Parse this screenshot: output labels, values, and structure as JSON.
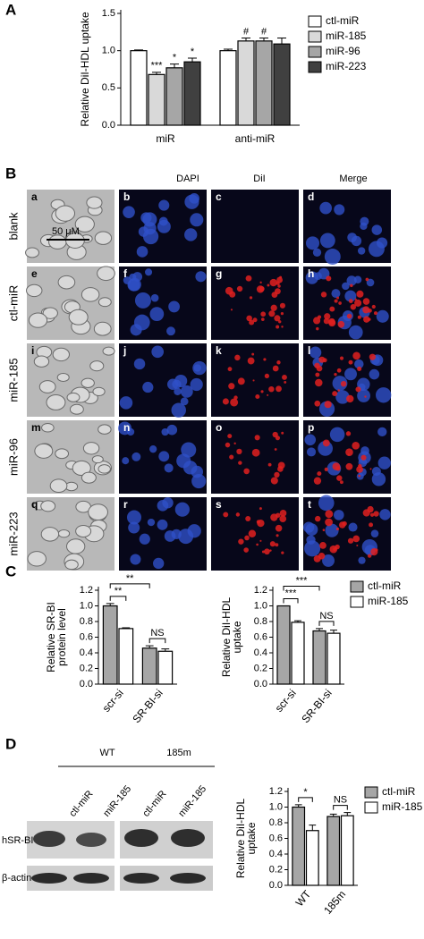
{
  "panel_labels": [
    "A",
    "B",
    "C",
    "D"
  ],
  "chart_data": [
    {
      "type": "bar",
      "ylabel": [
        "Relative DiI-HDL uptake"
      ],
      "categories": [
        "miR",
        "anti-miR"
      ],
      "ylim": [
        0,
        1.5
      ],
      "yticks": [
        {
          "value": 0,
          "label": "0.0"
        },
        0.5,
        {
          "value": 1,
          "label": "1.0"
        },
        1.5
      ],
      "legend": true,
      "series": [
        {
          "name": "ctl-miR",
          "color": "#ffffff",
          "values": [
            1.0,
            1.0
          ],
          "errors": [
            0.01,
            0.02
          ],
          "markers": [
            null,
            null
          ]
        },
        {
          "name": "miR-185",
          "color": "#d9d9d9",
          "values": [
            0.68,
            1.13
          ],
          "errors": [
            0.03,
            0.04
          ],
          "markers": [
            "***",
            "#"
          ]
        },
        {
          "name": "miR-96",
          "color": "#a6a6a6",
          "values": [
            0.77,
            1.13
          ],
          "errors": [
            0.05,
            0.04
          ],
          "markers": [
            "*",
            "#"
          ]
        },
        {
          "name": "miR-223",
          "color": "#404040",
          "values": [
            0.85,
            1.09
          ],
          "errors": [
            0.05,
            0.08
          ],
          "markers": [
            "*",
            null
          ]
        }
      ]
    },
    {
      "type": "bar",
      "ylabel": [
        "Relative SR-BI",
        "protein level"
      ],
      "categories": [
        "scr-si",
        "SR-BI-si"
      ],
      "ylim": [
        0,
        1.2
      ],
      "yticks": [
        {
          "value": 0,
          "label": "0.0"
        },
        0.2,
        0.4,
        0.6,
        0.8,
        {
          "value": 1,
          "label": "1.0"
        },
        1.2
      ],
      "legend": false,
      "annotations": [
        "**",
        "**",
        "NS"
      ],
      "series": [
        {
          "color": "#a6a6a6",
          "values": [
            1.0,
            0.46
          ],
          "errors": [
            0.03,
            0.03
          ]
        },
        {
          "color": "#ffffff",
          "values": [
            0.71,
            0.42
          ],
          "errors": [
            0.01,
            0.03
          ]
        }
      ]
    },
    {
      "type": "bar",
      "ylabel": [
        "Relative DiI-HDL",
        "uptake"
      ],
      "categories": [
        "scr-si",
        "SR-BI-si"
      ],
      "ylim": [
        0,
        1.2
      ],
      "yticks": [
        {
          "value": 0,
          "label": "0.0"
        },
        0.2,
        0.4,
        0.6,
        0.8,
        {
          "value": 1,
          "label": "1.0"
        },
        1.2
      ],
      "legend": true,
      "annotations": [
        "***",
        "***",
        "NS"
      ],
      "series": [
        {
          "name": "ctl-miR",
          "color": "#a6a6a6",
          "values": [
            1.0,
            0.68
          ],
          "errors": [
            0.0,
            0.03
          ]
        },
        {
          "name": "miR-185",
          "color": "#ffffff",
          "values": [
            0.79,
            0.65
          ],
          "errors": [
            0.02,
            0.04
          ]
        }
      ]
    },
    {
      "type": "bar",
      "ylabel": [
        "Relative DiI-HDL",
        "uptake"
      ],
      "categories": [
        "WT",
        "185m"
      ],
      "ylim": [
        0,
        1.2
      ],
      "yticks": [
        {
          "value": 0,
          "label": "0.0"
        },
        0.2,
        0.4,
        0.6,
        0.8,
        {
          "value": 1,
          "label": "1.0"
        },
        1.2
      ],
      "legend": true,
      "annotations": [
        "*",
        "NS"
      ],
      "series": [
        {
          "name": "ctl-miR",
          "color": "#a6a6a6",
          "values": [
            1.0,
            0.88
          ],
          "errors": [
            0.03,
            0.03
          ]
        },
        {
          "name": "miR-185",
          "color": "#ffffff",
          "values": [
            0.7,
            0.89
          ],
          "errors": [
            0.07,
            0.04
          ]
        }
      ]
    }
  ],
  "panel_b": {
    "columns": [
      "DAPI",
      "DiI",
      "Merge"
    ],
    "rows": [
      "blank",
      "ctl-miR",
      "miR-185",
      "miR-96",
      "miR-223"
    ],
    "panel_letters": [
      "a",
      "b",
      "c",
      "d",
      "e",
      "f",
      "g",
      "h",
      "i",
      "j",
      "k",
      "l",
      "m",
      "n",
      "o",
      "p",
      "q",
      "r",
      "s",
      "t"
    ],
    "scale_bar": "50 μM"
  },
  "panel_d_blot": {
    "groups": [
      "WT",
      "185m"
    ],
    "lanes": [
      "ctl-miR",
      "miR-185",
      "ctl-miR",
      "miR-185"
    ],
    "rows": [
      "hSR-BI",
      "β-actin"
    ]
  }
}
